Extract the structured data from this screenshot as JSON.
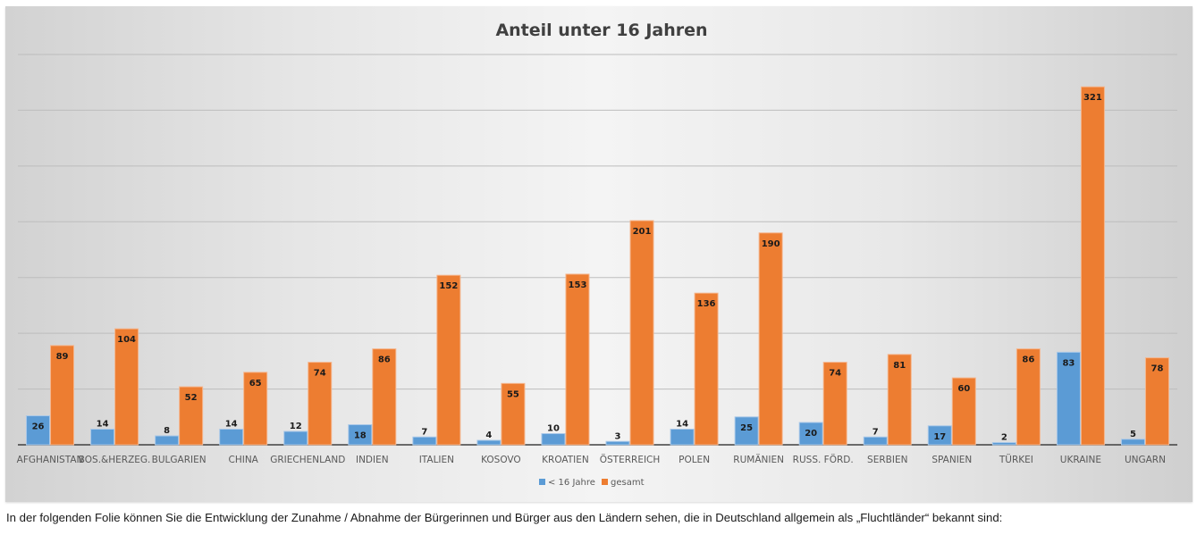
{
  "chart_data": {
    "type": "bar",
    "title": "Anteil unter 16 Jahren",
    "xlabel": "",
    "ylabel": "",
    "ylim": [
      0,
      350
    ],
    "grid": true,
    "legend_position": "bottom",
    "categories": [
      "AFGHANISTAN",
      "BOS.&HERZEG.",
      "BULGARIEN",
      "CHINA",
      "GRIECHENLAND",
      "INDIEN",
      "ITALIEN",
      "KOSOVO",
      "KROATIEN",
      "ÖSTERREICH",
      "POLEN",
      "RUMÄNIEN",
      "RUSS. FÖRD.",
      "SERBIEN",
      "SPANIEN",
      "TÜRKEI",
      "UKRAINE",
      "UNGARN"
    ],
    "series": [
      {
        "name": "< 16 Jahre",
        "color": "#5B9BD5",
        "values": [
          26,
          14,
          8,
          14,
          12,
          18,
          7,
          4,
          10,
          3,
          14,
          25,
          20,
          7,
          17,
          2,
          83,
          5
        ]
      },
      {
        "name": "gesamt",
        "color": "#ED7D31",
        "values": [
          89,
          104,
          52,
          65,
          74,
          86,
          152,
          55,
          153,
          201,
          136,
          190,
          74,
          81,
          60,
          86,
          321,
          78
        ]
      }
    ]
  },
  "caption": "In der folgenden Folie können Sie die Entwicklung der Zunahme / Abnahme der Bürgerinnen und Bürger aus den Ländern sehen, die in Deutschland allgemein als „Fluchtländer“ bekannt sind:"
}
